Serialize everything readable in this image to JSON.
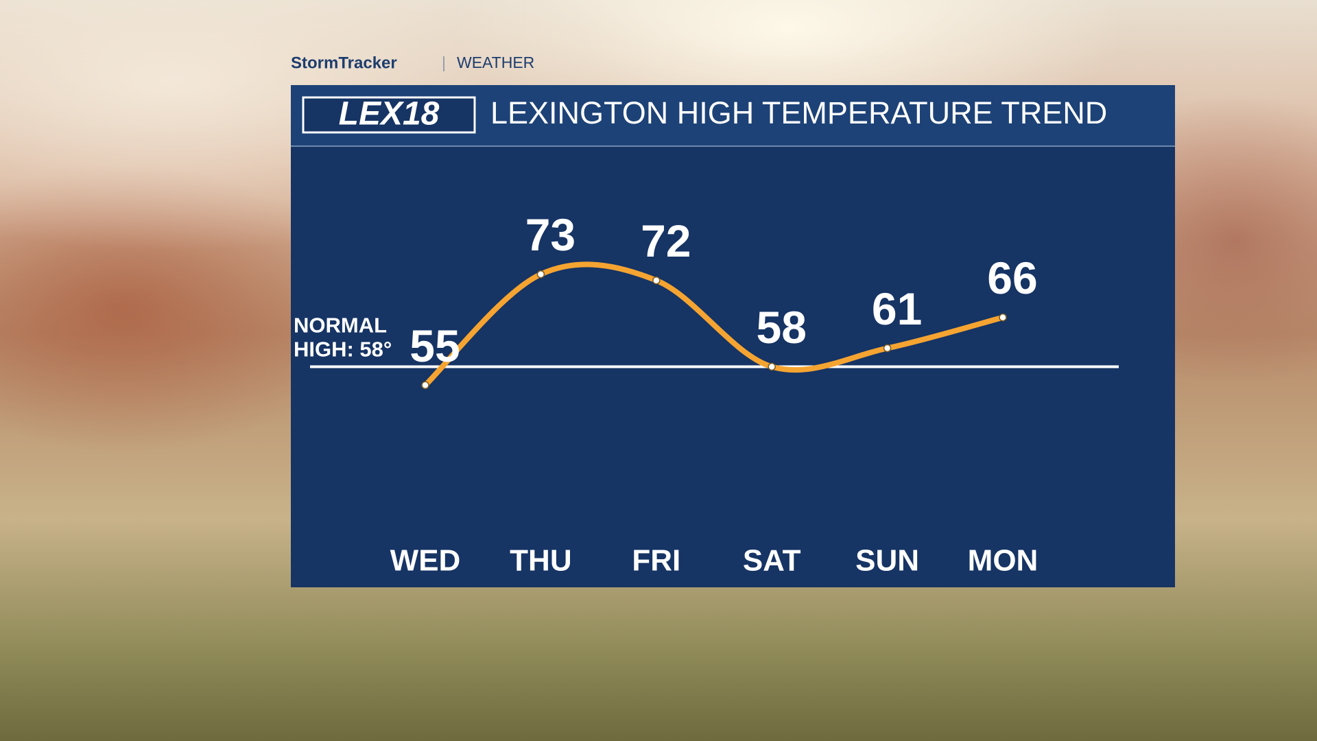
{
  "brand": {
    "name": "StormTracker",
    "section": "WEATHER",
    "logo": "LEX18"
  },
  "chart_data": {
    "type": "line",
    "title": "LEXINGTON HIGH TEMPERATURE TREND",
    "categories": [
      "WED",
      "THU",
      "FRI",
      "SAT",
      "SUN",
      "MON"
    ],
    "values": [
      55,
      73,
      72,
      58,
      61,
      66
    ],
    "color": "#f5a431",
    "ylim": [
      30,
      90
    ],
    "reference_line": {
      "value": 58,
      "label": [
        "NORMAL",
        "HIGH: 58°"
      ],
      "color": "#ffffff"
    }
  }
}
